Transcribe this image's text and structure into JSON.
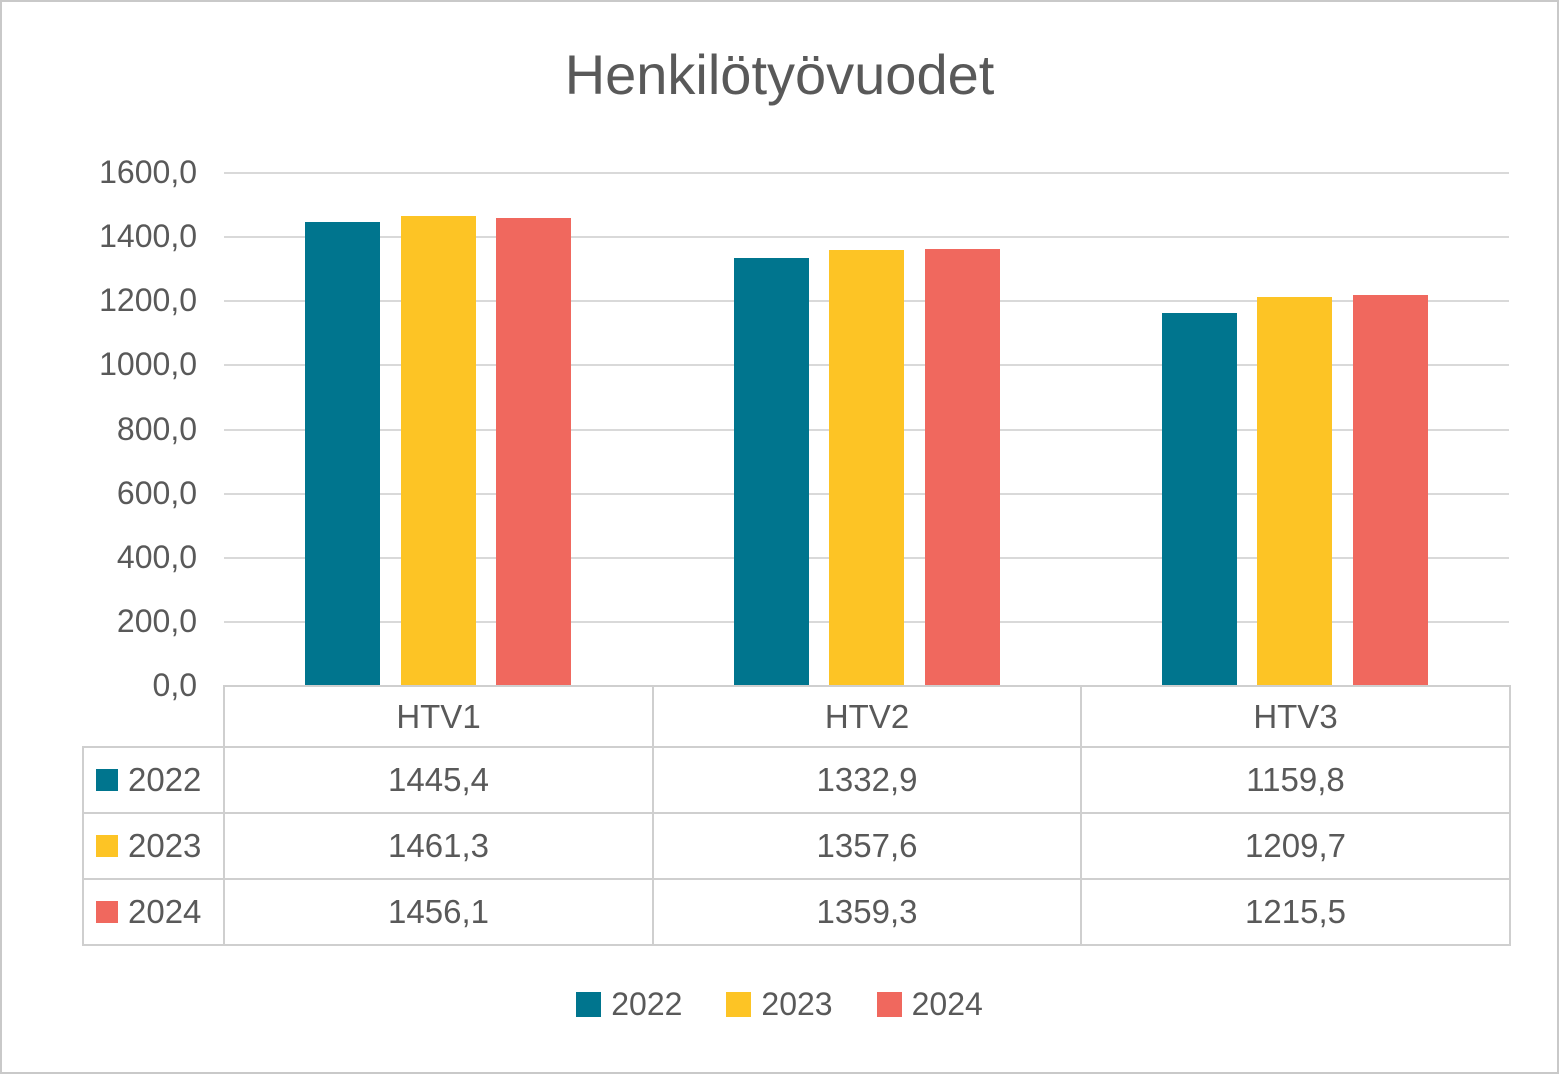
{
  "chart": {
    "title": "Henkilötyövuodet",
    "y_axis": {
      "ticks": [
        "1600,0",
        "1400,0",
        "1200,0",
        "1000,0",
        "800,0",
        "600,0",
        "400,0",
        "200,0",
        "0,0"
      ],
      "min": 0,
      "max": 1600,
      "step": 200
    }
  },
  "chart_data": {
    "type": "bar",
    "title": "Henkilötyövuodet",
    "categories": [
      "HTV1",
      "HTV2",
      "HTV3"
    ],
    "series": [
      {
        "name": "2022",
        "color": "#00758E",
        "values": [
          1445.4,
          1332.9,
          1159.8
        ]
      },
      {
        "name": "2023",
        "color": "#FDC425",
        "values": [
          1461.3,
          1357.6,
          1209.7
        ]
      },
      {
        "name": "2024",
        "color": "#F0685E",
        "values": [
          1456.1,
          1359.3,
          1215.5
        ]
      }
    ],
    "xlabel": "",
    "ylabel": "",
    "ylim": [
      0,
      1600
    ],
    "grid": true,
    "legend_position": "bottom",
    "value_format": "comma-decimal",
    "text_color": "#595959",
    "gridline_color": "#d9d9d9",
    "table_border_color": "#cfcfcf"
  },
  "table": {
    "headers": [
      "HTV1",
      "HTV2",
      "HTV3"
    ],
    "rows": [
      {
        "label": "2022",
        "values": [
          "1445,4",
          "1332,9",
          "1159,8"
        ]
      },
      {
        "label": "2023",
        "values": [
          "1461,3",
          "1357,6",
          "1209,7"
        ]
      },
      {
        "label": "2024",
        "values": [
          "1456,1",
          "1359,3",
          "1215,5"
        ]
      }
    ]
  },
  "legend": {
    "items": [
      {
        "label": "2022"
      },
      {
        "label": "2023"
      },
      {
        "label": "2024"
      }
    ]
  }
}
